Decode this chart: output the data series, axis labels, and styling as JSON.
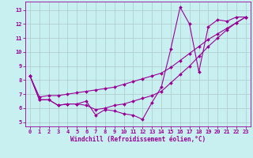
{
  "xlabel": "Windchill (Refroidissement éolien,°C)",
  "bg_color": "#c8f0f0",
  "line_color": "#990099",
  "grid_color": "#b0c8c8",
  "x_ticks": [
    0,
    1,
    2,
    3,
    4,
    5,
    6,
    7,
    8,
    9,
    10,
    11,
    12,
    13,
    14,
    15,
    16,
    17,
    18,
    19,
    20,
    21,
    22,
    23
  ],
  "y_ticks": [
    5,
    6,
    7,
    8,
    9,
    10,
    11,
    12,
    13
  ],
  "xlim": [
    -0.5,
    23.5
  ],
  "ylim": [
    4.7,
    13.6
  ],
  "line1_x": [
    0,
    1,
    2,
    3,
    4,
    5,
    6,
    7,
    8,
    9,
    10,
    11,
    12,
    13,
    14,
    15,
    16,
    17,
    18,
    19,
    20,
    21,
    22,
    23
  ],
  "line1_y": [
    8.3,
    6.6,
    6.6,
    6.2,
    6.3,
    6.3,
    6.5,
    5.5,
    5.9,
    5.8,
    5.6,
    5.5,
    5.2,
    6.4,
    7.5,
    10.2,
    13.2,
    12.0,
    8.6,
    11.8,
    12.3,
    12.2,
    12.5,
    12.5
  ],
  "line2_x": [
    0,
    1,
    2,
    3,
    4,
    5,
    6,
    7,
    8,
    9,
    10,
    11,
    12,
    13,
    14,
    15,
    16,
    17,
    18,
    19,
    20,
    21,
    22,
    23
  ],
  "line2_y": [
    8.3,
    6.8,
    6.9,
    6.9,
    7.0,
    7.1,
    7.2,
    7.3,
    7.4,
    7.5,
    7.7,
    7.9,
    8.1,
    8.3,
    8.5,
    8.9,
    9.4,
    9.9,
    10.4,
    10.9,
    11.3,
    11.7,
    12.1,
    12.5
  ],
  "line3_x": [
    0,
    1,
    2,
    3,
    4,
    5,
    6,
    7,
    8,
    9,
    10,
    11,
    12,
    13,
    14,
    15,
    16,
    17,
    18,
    19,
    20,
    21,
    22,
    23
  ],
  "line3_y": [
    8.3,
    6.6,
    6.6,
    6.2,
    6.3,
    6.3,
    6.2,
    5.9,
    6.0,
    6.2,
    6.3,
    6.5,
    6.7,
    6.9,
    7.2,
    7.8,
    8.4,
    9.0,
    9.7,
    10.4,
    11.0,
    11.6,
    12.1,
    12.5
  ],
  "marker": "D",
  "markersize": 2.0,
  "linewidth": 0.8,
  "tick_fontsize": 5.0,
  "xlabel_fontsize": 5.5
}
